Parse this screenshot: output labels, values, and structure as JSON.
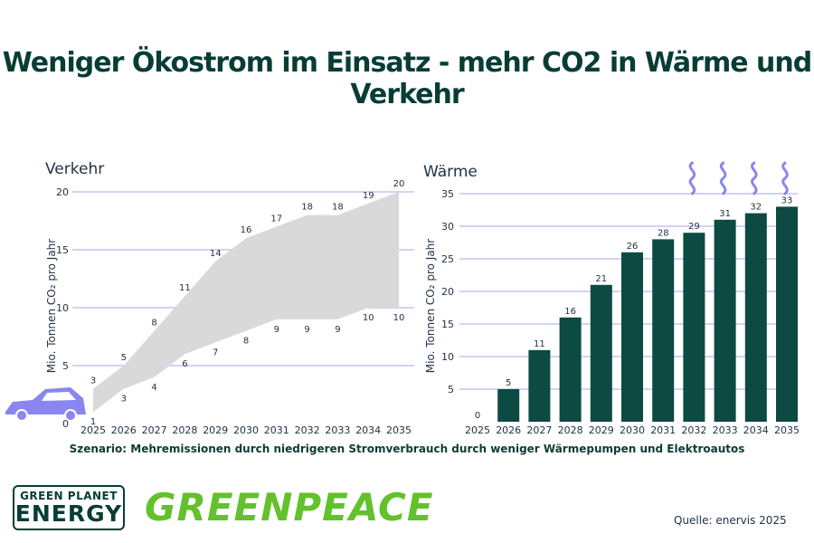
{
  "title": "Weniger Ökostrom im Einsatz - mehr CO2 in Wärme und Verkehr",
  "scenario": "Szenario: Mehremissionen durch niedrigeren Stromverbrauch durch weniger Wärmepumpen und Elektroautos",
  "source": "Quelle: enervis 2025",
  "logos": {
    "green_planet_line1": "GREEN PLANET",
    "green_planet_line2": "ENERGY",
    "greenpeace": "GREENPEACE"
  },
  "colors": {
    "title": "#073d34",
    "bar": "#0c4a42",
    "band": "#d9d9d9",
    "grid": "#a8a6ee",
    "icon": "#8a86f0",
    "greenpeace": "#63c12c"
  },
  "icons": {
    "car": "car-icon",
    "heat": "heat-wave-icon"
  },
  "chart_data": [
    {
      "type": "area",
      "title": "Verkehr",
      "ylabel": "Mio. Tonnen CO₂ pro Jahr",
      "ylim": [
        0,
        20
      ],
      "yticks": [
        "0",
        "5",
        "10",
        "15",
        "20"
      ],
      "x": [
        "2025",
        "2026",
        "2027",
        "2028",
        "2029",
        "2030",
        "2031",
        "2032",
        "2033",
        "2034",
        "2035"
      ],
      "series": [
        {
          "name": "",
          "values": [
            3,
            5,
            8,
            11,
            14,
            16,
            17,
            18,
            18,
            19,
            20
          ]
        },
        {
          "name": "",
          "values": [
            1,
            3,
            4,
            6,
            7,
            8,
            9,
            9,
            9,
            10,
            10
          ]
        }
      ],
      "grid": true
    },
    {
      "type": "bar",
      "title": "Wärme",
      "ylabel": "Mio. Tonnen CO₂ pro Jahr",
      "ylim": [
        0,
        35
      ],
      "yticks": [
        "5",
        "10",
        "15",
        "20",
        "25",
        "30",
        "35"
      ],
      "categories": [
        "2025",
        "2026",
        "2027",
        "2028",
        "2029",
        "2030",
        "2031",
        "2032",
        "2033",
        "2034",
        "2035"
      ],
      "values": [
        0,
        5,
        11,
        16,
        21,
        26,
        28,
        29,
        31,
        32,
        33
      ],
      "grid": true
    }
  ]
}
